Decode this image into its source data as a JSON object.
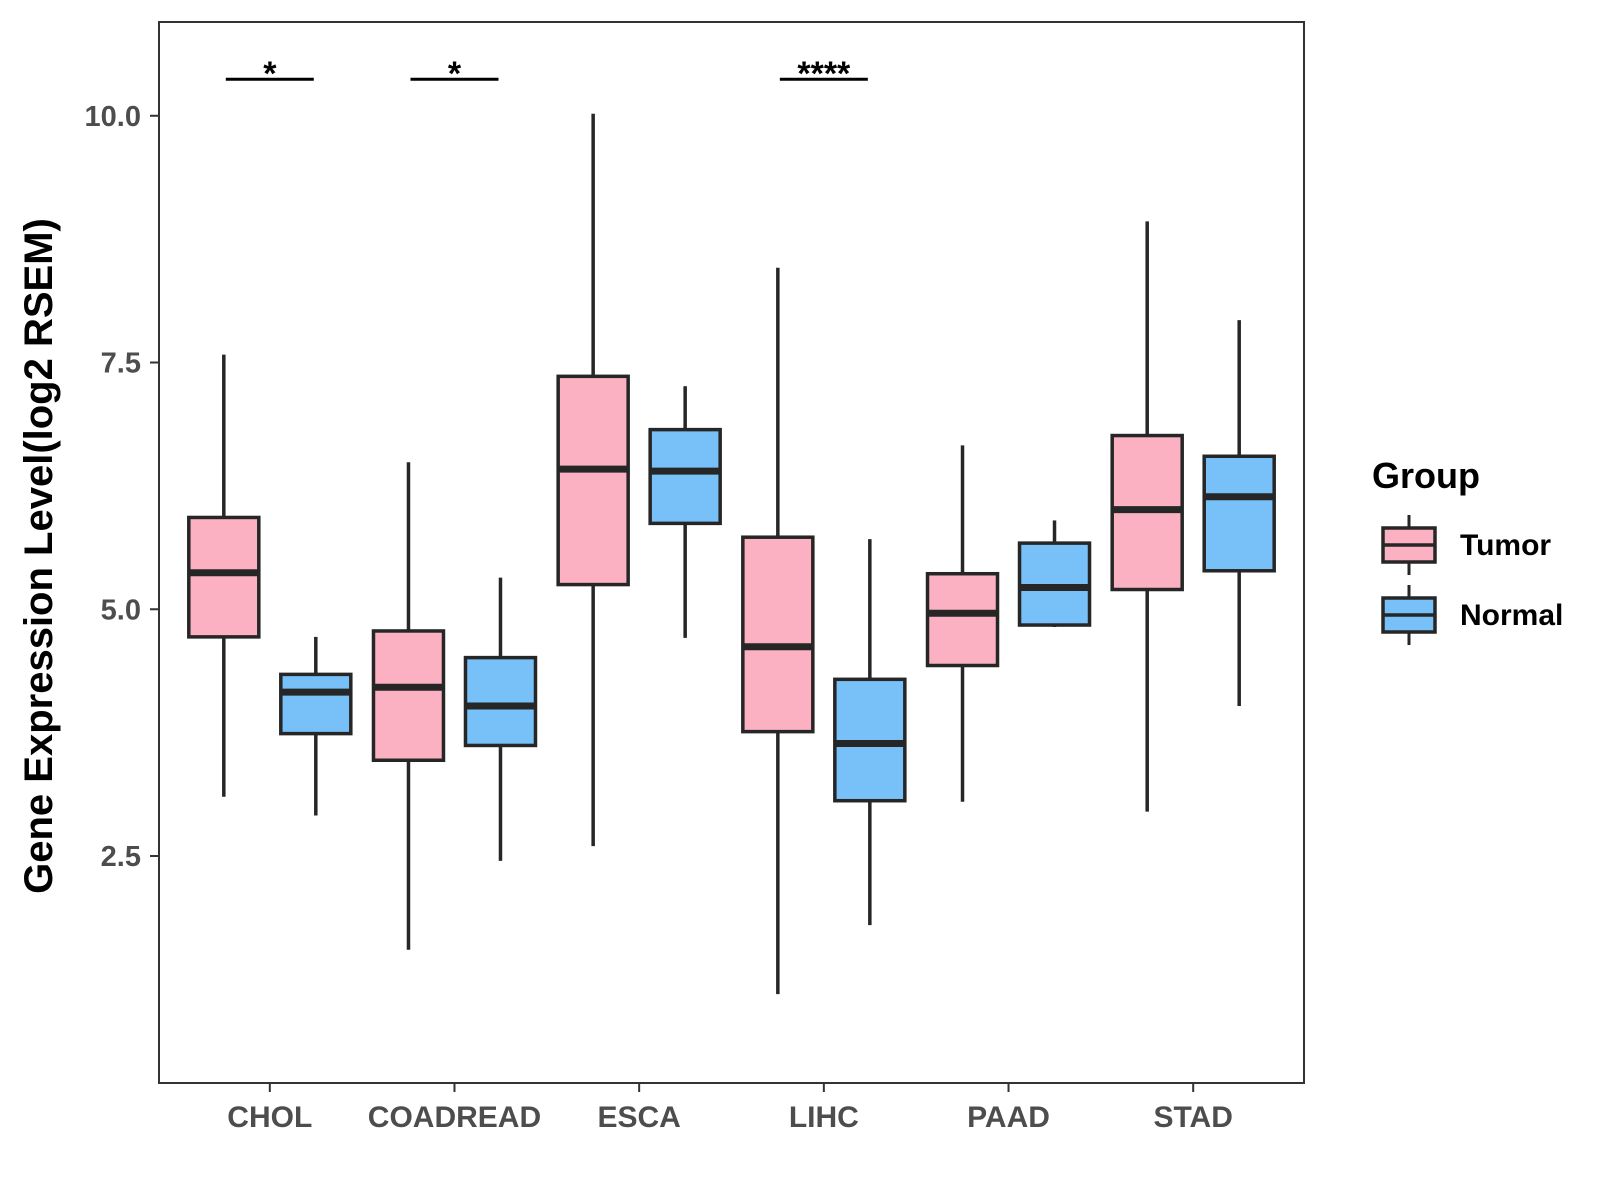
{
  "chart_data": {
    "type": "boxplot",
    "title": "",
    "xlabel": "",
    "ylabel": "Gene Expression Level(log2 RSEM)",
    "ylim": [
      0.2,
      10.95
    ],
    "yticks": [
      2.5,
      5.0,
      7.5,
      10.0
    ],
    "ytick_labels": [
      "2.5",
      "5.0",
      "7.5",
      "10.0"
    ],
    "categories": [
      "CHOL",
      "COADREAD",
      "ESCA",
      "LIHC",
      "PAAD",
      "STAD"
    ],
    "legend": {
      "title": "Group",
      "position": "right",
      "entries": [
        {
          "name": "Tumor",
          "color": "#fbb1c2"
        },
        {
          "name": "Normal",
          "color": "#77c1f8"
        }
      ]
    },
    "series": [
      {
        "name": "Tumor",
        "color": "#fbb1c2",
        "boxes": [
          {
            "min": 3.1,
            "q1": 4.72,
            "median": 5.37,
            "q3": 5.93,
            "max": 7.58
          },
          {
            "min": 1.55,
            "q1": 3.47,
            "median": 4.21,
            "q3": 4.78,
            "max": 6.49
          },
          {
            "min": 2.6,
            "q1": 5.25,
            "median": 6.42,
            "q3": 7.36,
            "max": 10.02
          },
          {
            "min": 1.1,
            "q1": 3.76,
            "median": 4.62,
            "q3": 5.73,
            "max": 8.46
          },
          {
            "min": 3.05,
            "q1": 4.43,
            "median": 4.96,
            "q3": 5.36,
            "max": 6.66
          },
          {
            "min": 2.95,
            "q1": 5.2,
            "median": 6.01,
            "q3": 6.76,
            "max": 8.93
          }
        ]
      },
      {
        "name": "Normal",
        "color": "#77c1f8",
        "boxes": [
          {
            "min": 2.91,
            "q1": 3.74,
            "median": 4.16,
            "q3": 4.34,
            "max": 4.72
          },
          {
            "min": 2.45,
            "q1": 3.62,
            "median": 4.02,
            "q3": 4.51,
            "max": 5.32
          },
          {
            "min": 4.71,
            "q1": 5.87,
            "median": 6.4,
            "q3": 6.82,
            "max": 7.26
          },
          {
            "min": 1.8,
            "q1": 3.06,
            "median": 3.64,
            "q3": 4.29,
            "max": 5.71
          },
          {
            "min": 4.82,
            "q1": 4.84,
            "median": 5.22,
            "q3": 5.67,
            "max": 5.9
          },
          {
            "min": 4.02,
            "q1": 5.39,
            "median": 6.14,
            "q3": 6.55,
            "max": 7.93
          }
        ]
      }
    ],
    "significance": [
      {
        "category": "CHOL",
        "label": "*"
      },
      {
        "category": "COADREAD",
        "label": "*"
      },
      {
        "category": "LIHC",
        "label": "****"
      }
    ]
  }
}
